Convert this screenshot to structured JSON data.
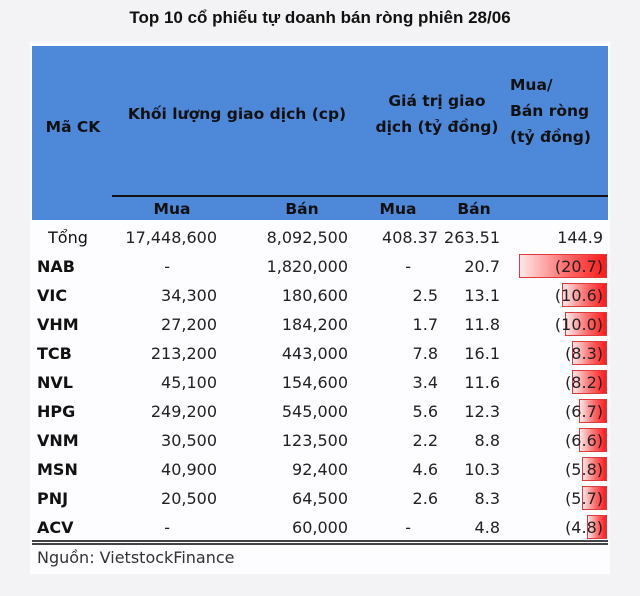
{
  "title": "Top 10 cổ phiếu tự doanh bán ròng phiên 28/06",
  "header": {
    "code": "Mã CK",
    "volume": "Khối lượng giao dịch (cp)",
    "value_line1": "Giá trị giao",
    "value_line2": "dịch (tỷ đồng)",
    "net_line1": "Mua/",
    "net_line2": "Bán ròng",
    "net_line3": "(tỷ đồng)",
    "sub_volume_buy": "Mua",
    "sub_volume_sell": "Bán",
    "sub_value_buy": "Mua",
    "sub_value_sell": "Bán"
  },
  "rows": [
    {
      "code": "Tổng",
      "vol_buy": "17,448,600",
      "vol_sell": "8,092,500",
      "val_buy": "408.37",
      "val_sell": "263.51",
      "net": "144.9",
      "bar_pct": 0
    },
    {
      "code": "NAB",
      "vol_buy": "-",
      "vol_sell": "1,820,000",
      "val_buy": "-",
      "val_sell": "20.7",
      "net": "(20.7)",
      "bar_pct": 100
    },
    {
      "code": "VIC",
      "vol_buy": "34,300",
      "vol_sell": "180,600",
      "val_buy": "2.5",
      "val_sell": "13.1",
      "net": "(10.6)",
      "bar_pct": 51
    },
    {
      "code": "VHM",
      "vol_buy": "27,200",
      "vol_sell": "184,200",
      "val_buy": "1.7",
      "val_sell": "11.8",
      "net": "(10.0)",
      "bar_pct": 48
    },
    {
      "code": "TCB",
      "vol_buy": "213,200",
      "vol_sell": "443,000",
      "val_buy": "7.8",
      "val_sell": "16.1",
      "net": "(8.3)",
      "bar_pct": 40
    },
    {
      "code": "NVL",
      "vol_buy": "45,100",
      "vol_sell": "154,600",
      "val_buy": "3.4",
      "val_sell": "11.6",
      "net": "(8.2)",
      "bar_pct": 40
    },
    {
      "code": "HPG",
      "vol_buy": "249,200",
      "vol_sell": "545,000",
      "val_buy": "5.6",
      "val_sell": "12.3",
      "net": "(6.7)",
      "bar_pct": 32
    },
    {
      "code": "VNM",
      "vol_buy": "30,500",
      "vol_sell": "123,500",
      "val_buy": "2.2",
      "val_sell": "8.8",
      "net": "(6.6)",
      "bar_pct": 32
    },
    {
      "code": "MSN",
      "vol_buy": "40,900",
      "vol_sell": "92,400",
      "val_buy": "4.6",
      "val_sell": "10.3",
      "net": "(5.8)",
      "bar_pct": 28
    },
    {
      "code": "PNJ",
      "vol_buy": "20,500",
      "vol_sell": "64,500",
      "val_buy": "2.6",
      "val_sell": "8.3",
      "net": "(5.7)",
      "bar_pct": 28
    },
    {
      "code": "ACV",
      "vol_buy": "-",
      "vol_sell": "60,000",
      "val_buy": "-",
      "val_sell": "4.8",
      "net": "(4.8)",
      "bar_pct": 23
    }
  ],
  "source": "Nguồn: VietstockFinance",
  "colors": {
    "header_bg": "#4e88d8",
    "bar_red": "#ff1a1a"
  }
}
